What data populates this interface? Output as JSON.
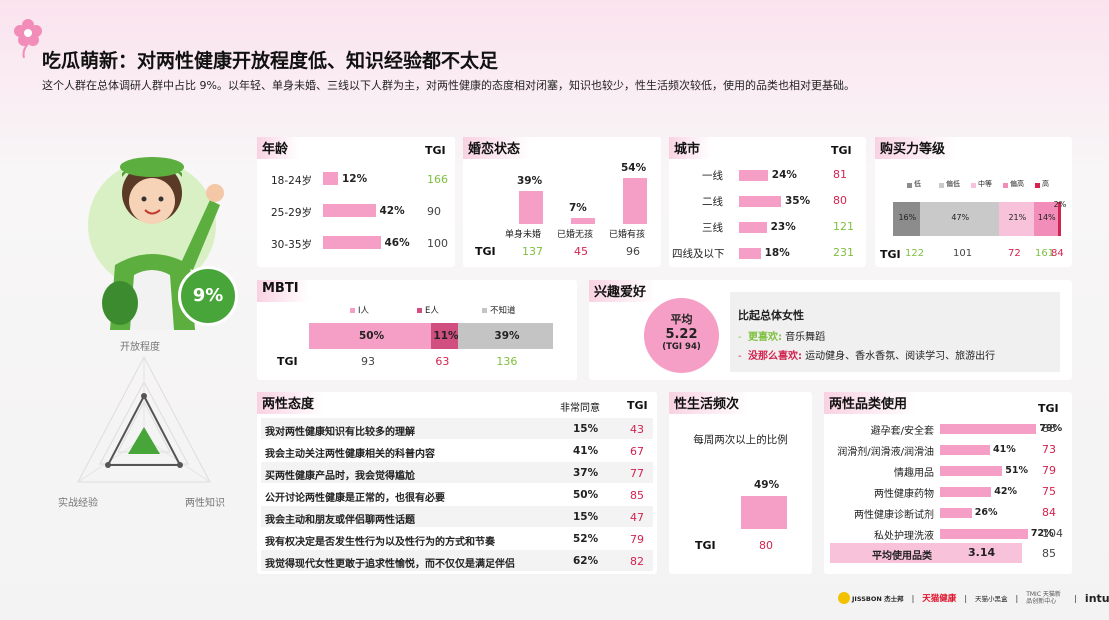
{
  "header": {
    "title": "吃瓜萌新：对两性健康开放程度低、知识经验都不太足",
    "subtitle": "这个人群在总体调研人群中占比 9%。以年轻、单身未婚、三线以下人群为主，对两性健康的态度相对闭塞，知识也较少，性生活频次较低，使用的品类也相对更基础。"
  },
  "persona": {
    "share": "9%",
    "radar": {
      "axes": [
        "开放程度",
        "实战经验",
        "两性知识"
      ]
    }
  },
  "age": {
    "title": "年龄",
    "tgi_label": "TGI",
    "rows": [
      {
        "label": "18-24岁",
        "value": "12%",
        "pct": 12,
        "tgi": "166"
      },
      {
        "label": "25-29岁",
        "value": "42%",
        "pct": 42,
        "tgi": "90"
      },
      {
        "label": "30-35岁",
        "value": "46%",
        "pct": 46,
        "tgi": "100"
      }
    ]
  },
  "marital": {
    "title": "婚恋状态",
    "tgi_label": "TGI",
    "cols": [
      {
        "label": "单身未婚",
        "value": "39%",
        "pct": 39,
        "tgi": "137"
      },
      {
        "label": "已婚无孩",
        "value": "7%",
        "pct": 7,
        "tgi": "45"
      },
      {
        "label": "已婚有孩",
        "value": "54%",
        "pct": 54,
        "tgi": "96"
      }
    ]
  },
  "city": {
    "title": "城市",
    "tgi_label": "TGI",
    "rows": [
      {
        "label": "一线",
        "value": "24%",
        "pct": 24,
        "tgi": "81"
      },
      {
        "label": "二线",
        "value": "35%",
        "pct": 35,
        "tgi": "80"
      },
      {
        "label": "三线",
        "value": "23%",
        "pct": 23,
        "tgi": "121"
      },
      {
        "label": "四线及以下",
        "value": "18%",
        "pct": 18,
        "tgi": "231"
      }
    ]
  },
  "purchase": {
    "title": "购买力等级",
    "tgi_label": "TGI",
    "legend": [
      "低",
      "偏低",
      "中等",
      "偏高",
      "高"
    ],
    "segments": [
      {
        "value": "16%",
        "pct": 16,
        "tgi": "122",
        "color": "#8c8c8c"
      },
      {
        "value": "47%",
        "pct": 47,
        "tgi": "101",
        "color": "#c9c9c9"
      },
      {
        "value": "21%",
        "pct": 21,
        "tgi": "72",
        "color": "#f8c3da"
      },
      {
        "value": "14%",
        "pct": 14,
        "tgi": "161",
        "color": "#f28cb9"
      },
      {
        "value": "2%",
        "pct": 2,
        "tgi": "84",
        "color": "#d3234f"
      }
    ]
  },
  "mbti": {
    "title": "MBTI",
    "tgi_label": "TGI",
    "legend": [
      "I人",
      "E人",
      "不知道"
    ],
    "segments": [
      {
        "value": "50%",
        "pct": 50,
        "tgi": "93",
        "color": "#f59fc6"
      },
      {
        "value": "11%",
        "pct": 11,
        "tgi": "63",
        "color": "#d04f80"
      },
      {
        "value": "39%",
        "pct": 39,
        "tgi": "136",
        "color": "#c4c4c4"
      }
    ]
  },
  "hobby": {
    "title": "兴趣爱好",
    "avg_label": "平均",
    "avg_value": "5.22",
    "avg_tgi": "(TGI 94)",
    "compare_title": "比起总体女性",
    "more_label": "更喜欢:",
    "more_items": "音乐舞蹈",
    "less_label": "没那么喜欢:",
    "less_items": "运动健身、香水香氛、阅读学习、旅游出行"
  },
  "attitude": {
    "title": "两性态度",
    "col_agree": "非常同意",
    "col_tgi": "TGI",
    "rows": [
      {
        "text": "我对两性健康知识有比较多的理解",
        "value": "15%",
        "tgi": "43"
      },
      {
        "text": "我会主动关注两性健康相关的科普内容",
        "value": "41%",
        "tgi": "67"
      },
      {
        "text": "买两性健康产品时，我会觉得尴尬",
        "value": "37%",
        "tgi": "77"
      },
      {
        "text": "公开讨论两性健康是正常的，也很有必要",
        "value": "50%",
        "tgi": "85"
      },
      {
        "text": "我会主动和朋友或伴侣聊两性话题",
        "value": "15%",
        "tgi": "47"
      },
      {
        "text": "我有权决定是否发生性行为以及性行为的方式和节奏",
        "value": "52%",
        "tgi": "79"
      },
      {
        "text": "我觉得现代女性更敢于追求性愉悦，而不仅仅是满足伴侣",
        "value": "62%",
        "tgi": "82"
      }
    ]
  },
  "frequency": {
    "title": "性生活频次",
    "subtitle": "每周两次以上的比例",
    "value": "49%",
    "pct": 49,
    "tgi_label": "TGI",
    "tgi": "80"
  },
  "category": {
    "title": "两性品类使用",
    "tgi_label": "TGI",
    "rows": [
      {
        "label": "避孕套/安全套",
        "value": "79%",
        "pct": 79,
        "tgi": "88"
      },
      {
        "label": "润滑剂/润滑液/润滑油",
        "value": "41%",
        "pct": 41,
        "tgi": "73"
      },
      {
        "label": "情趣用品",
        "value": "51%",
        "pct": 51,
        "tgi": "79"
      },
      {
        "label": "两性健康药物",
        "value": "42%",
        "pct": 42,
        "tgi": "75"
      },
      {
        "label": "两性健康诊断试剂",
        "value": "26%",
        "pct": 26,
        "tgi": "84"
      },
      {
        "label": "私处护理洗液",
        "value": "72%",
        "pct": 72,
        "tgi": "104"
      }
    ],
    "avg_label": "平均使用品类",
    "avg_value": "3.14",
    "avg_tgi": "85"
  },
  "footer": {
    "logos": [
      "JISSBON 杰士邦",
      "天猫健康",
      "天猫小黑盒",
      "TMIC 天猫新品创新中心",
      "intuivia"
    ]
  }
}
